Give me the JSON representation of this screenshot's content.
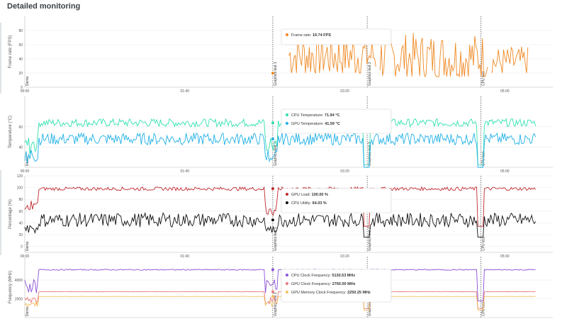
{
  "page": {
    "title": "Detailed monitoring"
  },
  "time_ticks": [
    "00:00",
    "01:40",
    "03:20",
    "05:00"
  ],
  "markers": [
    "Demo",
    "Graphics test 1",
    "Graphics test 2",
    "CPU test"
  ],
  "chart_data": [
    {
      "type": "line",
      "ylabel": "Frame rate (FPS)",
      "ylim": [
        0,
        100
      ],
      "yticks": [
        0,
        20,
        40,
        60,
        80
      ],
      "x": [
        0,
        100,
        200,
        300
      ],
      "series": [
        {
          "name": "Frame rate",
          "color": "#f08a24",
          "tooltip_value": "19.74 FPS",
          "segments": [
            {
              "start": 165,
              "end": 220,
              "min": 20,
              "max": 88,
              "base": 45
            },
            {
              "start": 222,
              "end": 290,
              "min": 15,
              "max": 85,
              "base": 42
            },
            {
              "start": 292,
              "end": 315,
              "min": 20,
              "max": 65,
              "base": 35
            }
          ]
        }
      ]
    },
    {
      "type": "line",
      "ylabel": "Temperature (°C)",
      "ylim": [
        20,
        90
      ],
      "yticks": [
        40,
        60
      ],
      "x": [
        0,
        100,
        200,
        300
      ],
      "series": [
        {
          "name": "CPU Temperature",
          "color": "#2fe0b0",
          "tooltip_value": "71.94 °C",
          "base": 64,
          "noise": 4
        },
        {
          "name": "GPU Temperature",
          "color": "#1fb0e6",
          "tooltip_value": "41.59 °C",
          "base": 48,
          "noise": 6
        }
      ]
    },
    {
      "type": "line",
      "ylabel": "Percentage (%)",
      "ylim": [
        -10,
        120
      ],
      "yticks": [
        0,
        20,
        40,
        60,
        80,
        100,
        120
      ],
      "x": [
        0,
        100,
        200,
        300
      ],
      "series": [
        {
          "name": "GPU Load",
          "color": "#c0282f",
          "tooltip_value": "100.00 %",
          "base": 98,
          "noise": 3
        },
        {
          "name": "CPU Utility",
          "color": "#111111",
          "tooltip_value": "64.03 %",
          "base": 45,
          "noise": 12
        }
      ]
    },
    {
      "type": "line",
      "ylabel": "Frequency (MHz)",
      "ylim": [
        0,
        6500
      ],
      "yticks": [
        2000,
        4000
      ],
      "x": [
        0,
        100,
        200,
        300
      ],
      "series": [
        {
          "name": "CPU Clock Frequency",
          "color": "#8a4fd6",
          "tooltip_value": "5130.53 MHz",
          "base": 5100,
          "noise": 60
        },
        {
          "name": "GPU Clock Frequency",
          "color": "#e8787c",
          "tooltip_value": "2760.00 MHz",
          "base": 2760,
          "noise": 20
        },
        {
          "name": "GPU Memory Clock Frequency",
          "color": "#f2c062",
          "tooltip_value": "2250.25 MHz",
          "base": 2250,
          "noise": 10
        }
      ]
    }
  ]
}
